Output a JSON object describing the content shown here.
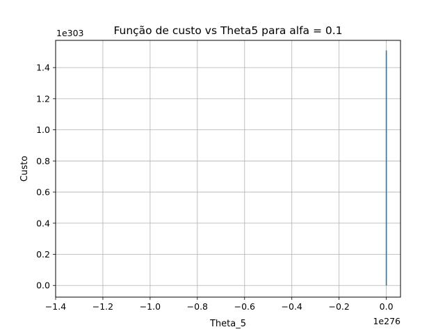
{
  "chart_data": {
    "type": "line",
    "title": "Função de custo vs Theta5 para alfa = 0.1",
    "xlabel": "Theta_5",
    "ylabel": "Custo",
    "x_offset_label": "1e276",
    "y_offset_label": "1e303",
    "xlim": [
      -1.4,
      0.06
    ],
    "ylim": [
      -0.075,
      1.575
    ],
    "xticks": [
      -1.4,
      -1.2,
      -1.0,
      -0.8,
      -0.6,
      -0.4,
      -0.2,
      0.0
    ],
    "xtick_labels": [
      "−1.4",
      "−1.2",
      "−1.0",
      "−0.8",
      "−0.6",
      "−0.4",
      "−0.2",
      "0.0"
    ],
    "yticks": [
      0.0,
      0.2,
      0.4,
      0.6,
      0.8,
      1.0,
      1.2,
      1.4
    ],
    "ytick_labels": [
      "0.0",
      "0.2",
      "0.4",
      "0.6",
      "0.8",
      "1.0",
      "1.2",
      "1.4"
    ],
    "grid": true,
    "series": [
      {
        "color": "#1f77b4",
        "x": [
          0.0,
          0.0
        ],
        "y": [
          0.0,
          1.51
        ]
      }
    ]
  }
}
